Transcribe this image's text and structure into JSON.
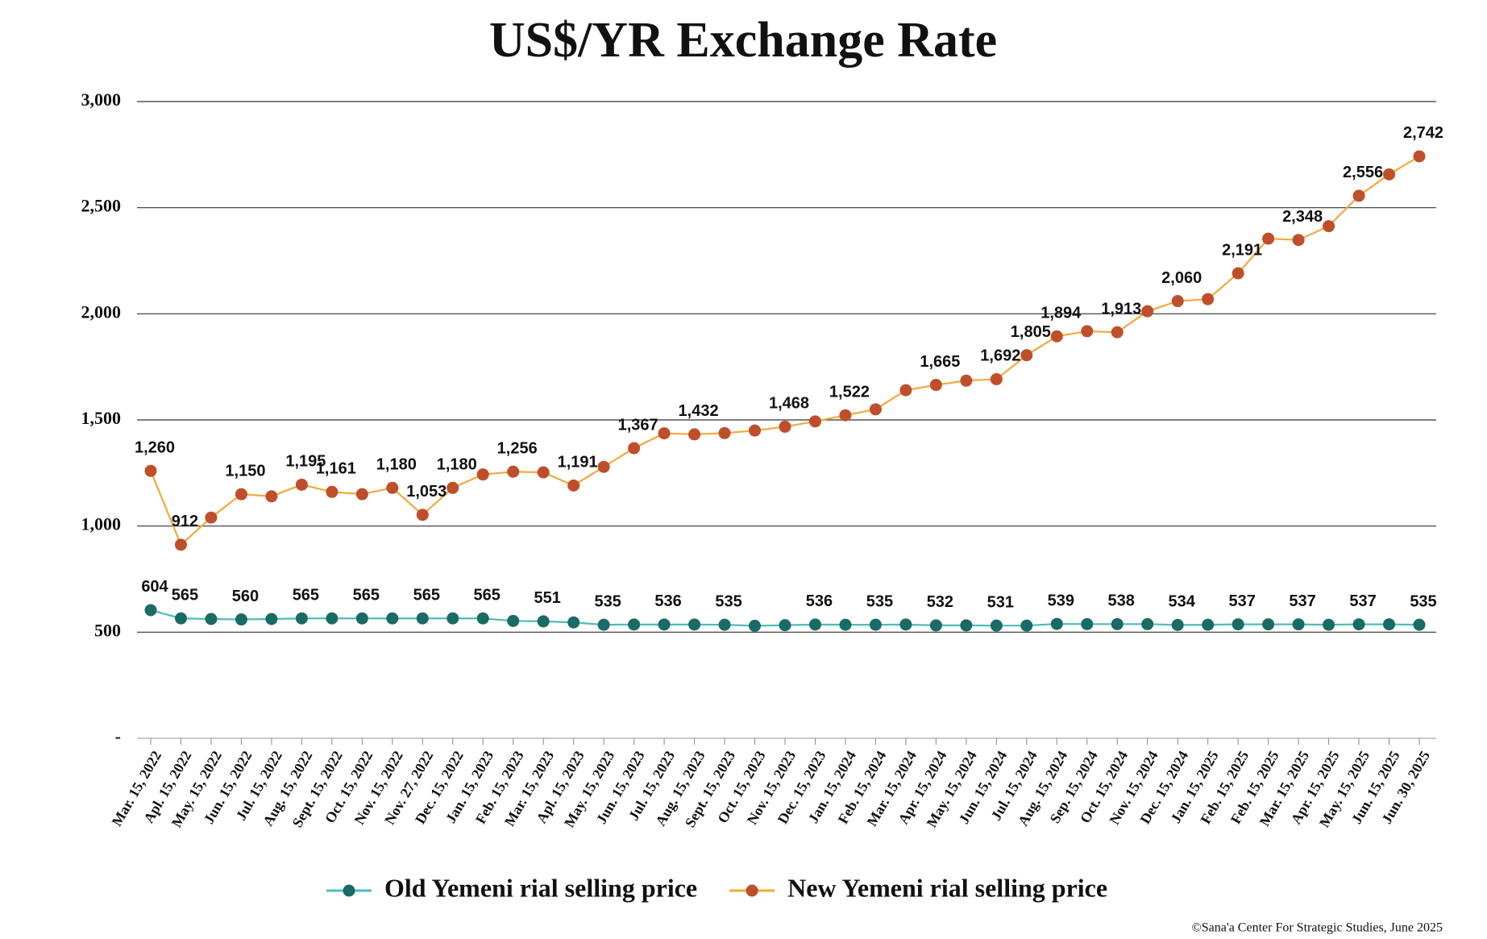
{
  "chart_data": {
    "type": "line",
    "title": "US$/YR Exchange Rate",
    "source": "©Sana'a Center For Strategic Studies, June 2025",
    "categories": [
      "Mar. 15, 2022",
      "Apl. 15, 2022",
      "May. 15, 2022",
      "Jun. 15, 2022",
      "Jul. 15, 2022",
      "Aug. 15, 2022",
      "Sept. 15, 2022",
      "Oct. 15, 2022",
      "Nov. 15, 2022",
      "Nov. 27, 2022",
      "Dec. 15, 2022",
      "Jan. 15, 2023",
      "Feb. 15, 2023",
      "Mar. 15, 2023",
      "Apl. 15, 2023",
      "May. 15, 2023",
      "Jun. 15, 2023",
      "Jul. 15, 2023",
      "Aug. 15, 2023",
      "Sept. 15, 2023",
      "Oct. 15, 2023",
      "Nov. 15, 2023",
      "Dec. 15, 2023",
      "Jan. 15, 2024",
      "Feb. 15, 2024",
      "Mar. 15, 2024",
      "Apr. 15, 2024",
      "May. 15, 2024",
      "Jun. 15, 2024",
      "Jul. 15, 2024",
      "Aug. 15, 2024",
      "Sep. 15, 2024",
      "Oct. 15, 2024",
      "Nov. 15, 2024",
      "Dec. 15, 2024",
      "Jan. 15, 2025",
      "Feb. 15, 2025",
      "Feb. 15, 2025",
      "Mar. 15, 2025",
      "Apr. 15, 2025",
      "May. 15, 2025",
      "Jun. 15, 2025",
      "Jun. 30, 2025"
    ],
    "series": [
      {
        "name": "Old Yemeni rial selling price",
        "color": "#4dbdb5",
        "marker_color": "#1a6b66",
        "values": [
          604,
          565,
          562,
          560,
          562,
          565,
          565,
          565,
          565,
          565,
          565,
          565,
          553,
          551,
          546,
          535,
          536,
          536,
          536,
          535,
          530,
          533,
          536,
          535,
          535,
          536,
          532,
          532,
          531,
          531,
          539,
          538,
          538,
          538,
          534,
          535,
          537,
          537,
          537,
          535,
          537,
          537,
          535
        ],
        "value_labels": [
          "604",
          "565",
          null,
          "560",
          null,
          "565",
          null,
          "565",
          null,
          "565",
          null,
          "565",
          null,
          "551",
          null,
          "535",
          null,
          "536",
          null,
          "535",
          null,
          null,
          "536",
          null,
          "535",
          null,
          "532",
          null,
          "531",
          null,
          "539",
          null,
          "538",
          null,
          "534",
          null,
          "537",
          null,
          "537",
          null,
          "537",
          null,
          "535"
        ]
      },
      {
        "name": "New Yemeni rial selling price",
        "color": "#f2a93b",
        "marker_color": "#bf4f2a",
        "values": [
          1260,
          912,
          1040,
          1150,
          1140,
          1195,
          1161,
          1150,
          1180,
          1053,
          1180,
          1243,
          1256,
          1253,
          1191,
          1279,
          1367,
          1437,
          1432,
          1438,
          1450,
          1468,
          1493,
          1522,
          1550,
          1640,
          1665,
          1685,
          1692,
          1805,
          1894,
          1918,
          1913,
          2012,
          2060,
          2069,
          2191,
          2354,
          2348,
          2413,
          2556,
          2657,
          2742
        ],
        "value_labels": [
          "1,260",
          "912",
          null,
          "1,150",
          null,
          "1,195",
          "1,161",
          null,
          "1,180",
          "1,053",
          "1,180",
          null,
          "1,256",
          null,
          "1,191",
          null,
          "1,367",
          null,
          "1,432",
          null,
          null,
          "1,468",
          null,
          "1,522",
          null,
          null,
          "1,665",
          null,
          "1,692",
          "1,805",
          "1,894",
          null,
          "1,913",
          null,
          "2,060",
          null,
          "2,191",
          null,
          "2,348",
          null,
          "2,556",
          null,
          "2,742"
        ]
      }
    ],
    "ylim": [
      0,
      3000
    ],
    "yticks": [
      {
        "value": 0,
        "label": "-"
      },
      500,
      {
        "value": 1000,
        "label": "1,000"
      },
      {
        "value": 1500,
        "label": "1,500"
      },
      {
        "value": 2000,
        "label": "2,000"
      },
      {
        "value": 2500,
        "label": "2,500"
      },
      {
        "value": 3000,
        "label": "3,000"
      }
    ],
    "grid": true,
    "legend": "bottom"
  }
}
